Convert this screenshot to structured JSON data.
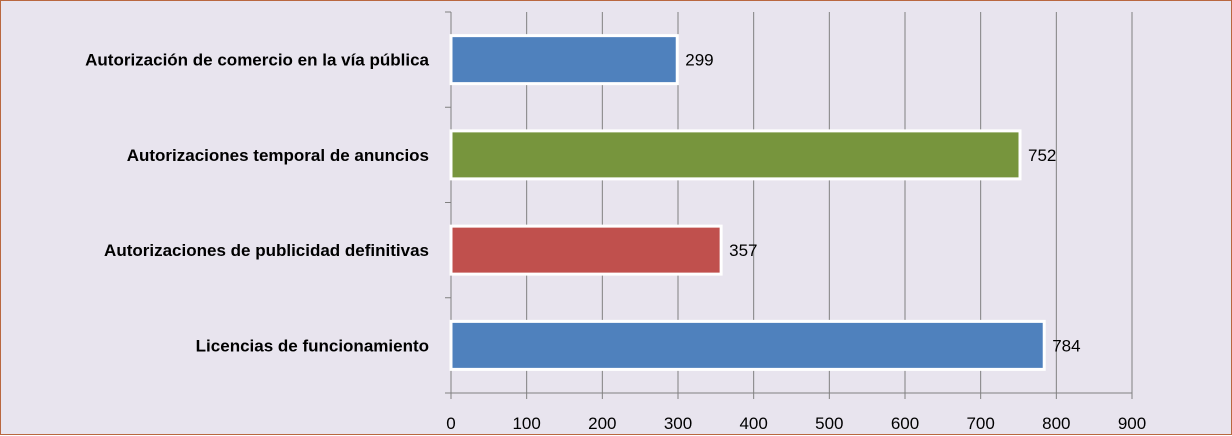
{
  "chart_data": {
    "type": "bar",
    "orientation": "horizontal",
    "categories": [
      "Autorización de comercio en la vía pública",
      "Autorizaciones temporal de anuncios",
      "Autorizaciones de publicidad definitivas",
      "Licencias de funcionamiento"
    ],
    "values": [
      299,
      752,
      357,
      784
    ],
    "bar_colors": [
      "#4f81bd",
      "#77953d",
      "#c0504d",
      "#4f81bd"
    ],
    "xlim": [
      0,
      900
    ],
    "x_ticks": [
      0,
      100,
      200,
      300,
      400,
      500,
      600,
      700,
      800,
      900
    ],
    "x_tick_labels": [
      "0",
      "100",
      "200",
      "300",
      "400",
      "500",
      "600",
      "700",
      "800",
      "900"
    ],
    "data_labels": [
      "299",
      "752",
      "357",
      "784"
    ],
    "grid": "vertical",
    "legend": "none",
    "title": "",
    "xlabel": "",
    "ylabel": ""
  },
  "colors": {
    "plot_background": "#e8e4ee",
    "border": "#b9673f",
    "gridline": "#808080"
  }
}
